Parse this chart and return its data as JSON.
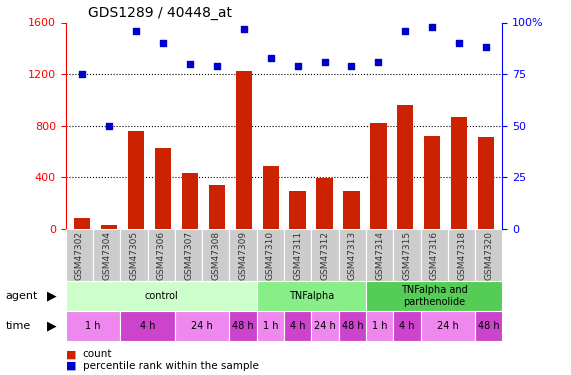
{
  "title": "GDS1289 / 40448_at",
  "samples": [
    "GSM47302",
    "GSM47304",
    "GSM47305",
    "GSM47306",
    "GSM47307",
    "GSM47308",
    "GSM47309",
    "GSM47310",
    "GSM47311",
    "GSM47312",
    "GSM47313",
    "GSM47314",
    "GSM47315",
    "GSM47316",
    "GSM47318",
    "GSM47320"
  ],
  "counts": [
    80,
    30,
    760,
    630,
    430,
    340,
    1220,
    490,
    290,
    390,
    290,
    820,
    960,
    720,
    870,
    710
  ],
  "percentiles": [
    75,
    50,
    96,
    90,
    80,
    79,
    97,
    83,
    79,
    81,
    79,
    81,
    96,
    98,
    90,
    88
  ],
  "bar_color": "#cc2200",
  "dot_color": "#0000cc",
  "left_ylim": [
    0,
    1600
  ],
  "right_ylim": [
    0,
    100
  ],
  "left_yticks": [
    0,
    400,
    800,
    1200,
    1600
  ],
  "right_ytick_vals": [
    0,
    25,
    50,
    75,
    100
  ],
  "right_ytick_labels": [
    "0",
    "25",
    "50",
    "75",
    "100%"
  ],
  "agent_groups": [
    {
      "label": "control",
      "start": 0,
      "end": 7,
      "color": "#ccffcc"
    },
    {
      "label": "TNFalpha",
      "start": 7,
      "end": 11,
      "color": "#88ee88"
    },
    {
      "label": "TNFalpha and\nparthenolide",
      "start": 11,
      "end": 16,
      "color": "#55cc55"
    }
  ],
  "time_groups": [
    {
      "label": "1 h",
      "start": 0,
      "end": 2,
      "color": "#ee88ee"
    },
    {
      "label": "4 h",
      "start": 2,
      "end": 4,
      "color": "#cc44cc"
    },
    {
      "label": "24 h",
      "start": 4,
      "end": 6,
      "color": "#ee88ee"
    },
    {
      "label": "48 h",
      "start": 6,
      "end": 7,
      "color": "#cc44cc"
    },
    {
      "label": "1 h",
      "start": 7,
      "end": 8,
      "color": "#ee88ee"
    },
    {
      "label": "4 h",
      "start": 8,
      "end": 9,
      "color": "#cc44cc"
    },
    {
      "label": "24 h",
      "start": 9,
      "end": 10,
      "color": "#ee88ee"
    },
    {
      "label": "48 h",
      "start": 10,
      "end": 11,
      "color": "#cc44cc"
    },
    {
      "label": "1 h",
      "start": 11,
      "end": 12,
      "color": "#ee88ee"
    },
    {
      "label": "4 h",
      "start": 12,
      "end": 13,
      "color": "#cc44cc"
    },
    {
      "label": "24 h",
      "start": 13,
      "end": 15,
      "color": "#ee88ee"
    },
    {
      "label": "48 h",
      "start": 15,
      "end": 16,
      "color": "#cc44cc"
    }
  ],
  "plot_bg": "#ffffff",
  "sample_box_color": "#cccccc",
  "fig_bg": "#ffffff"
}
